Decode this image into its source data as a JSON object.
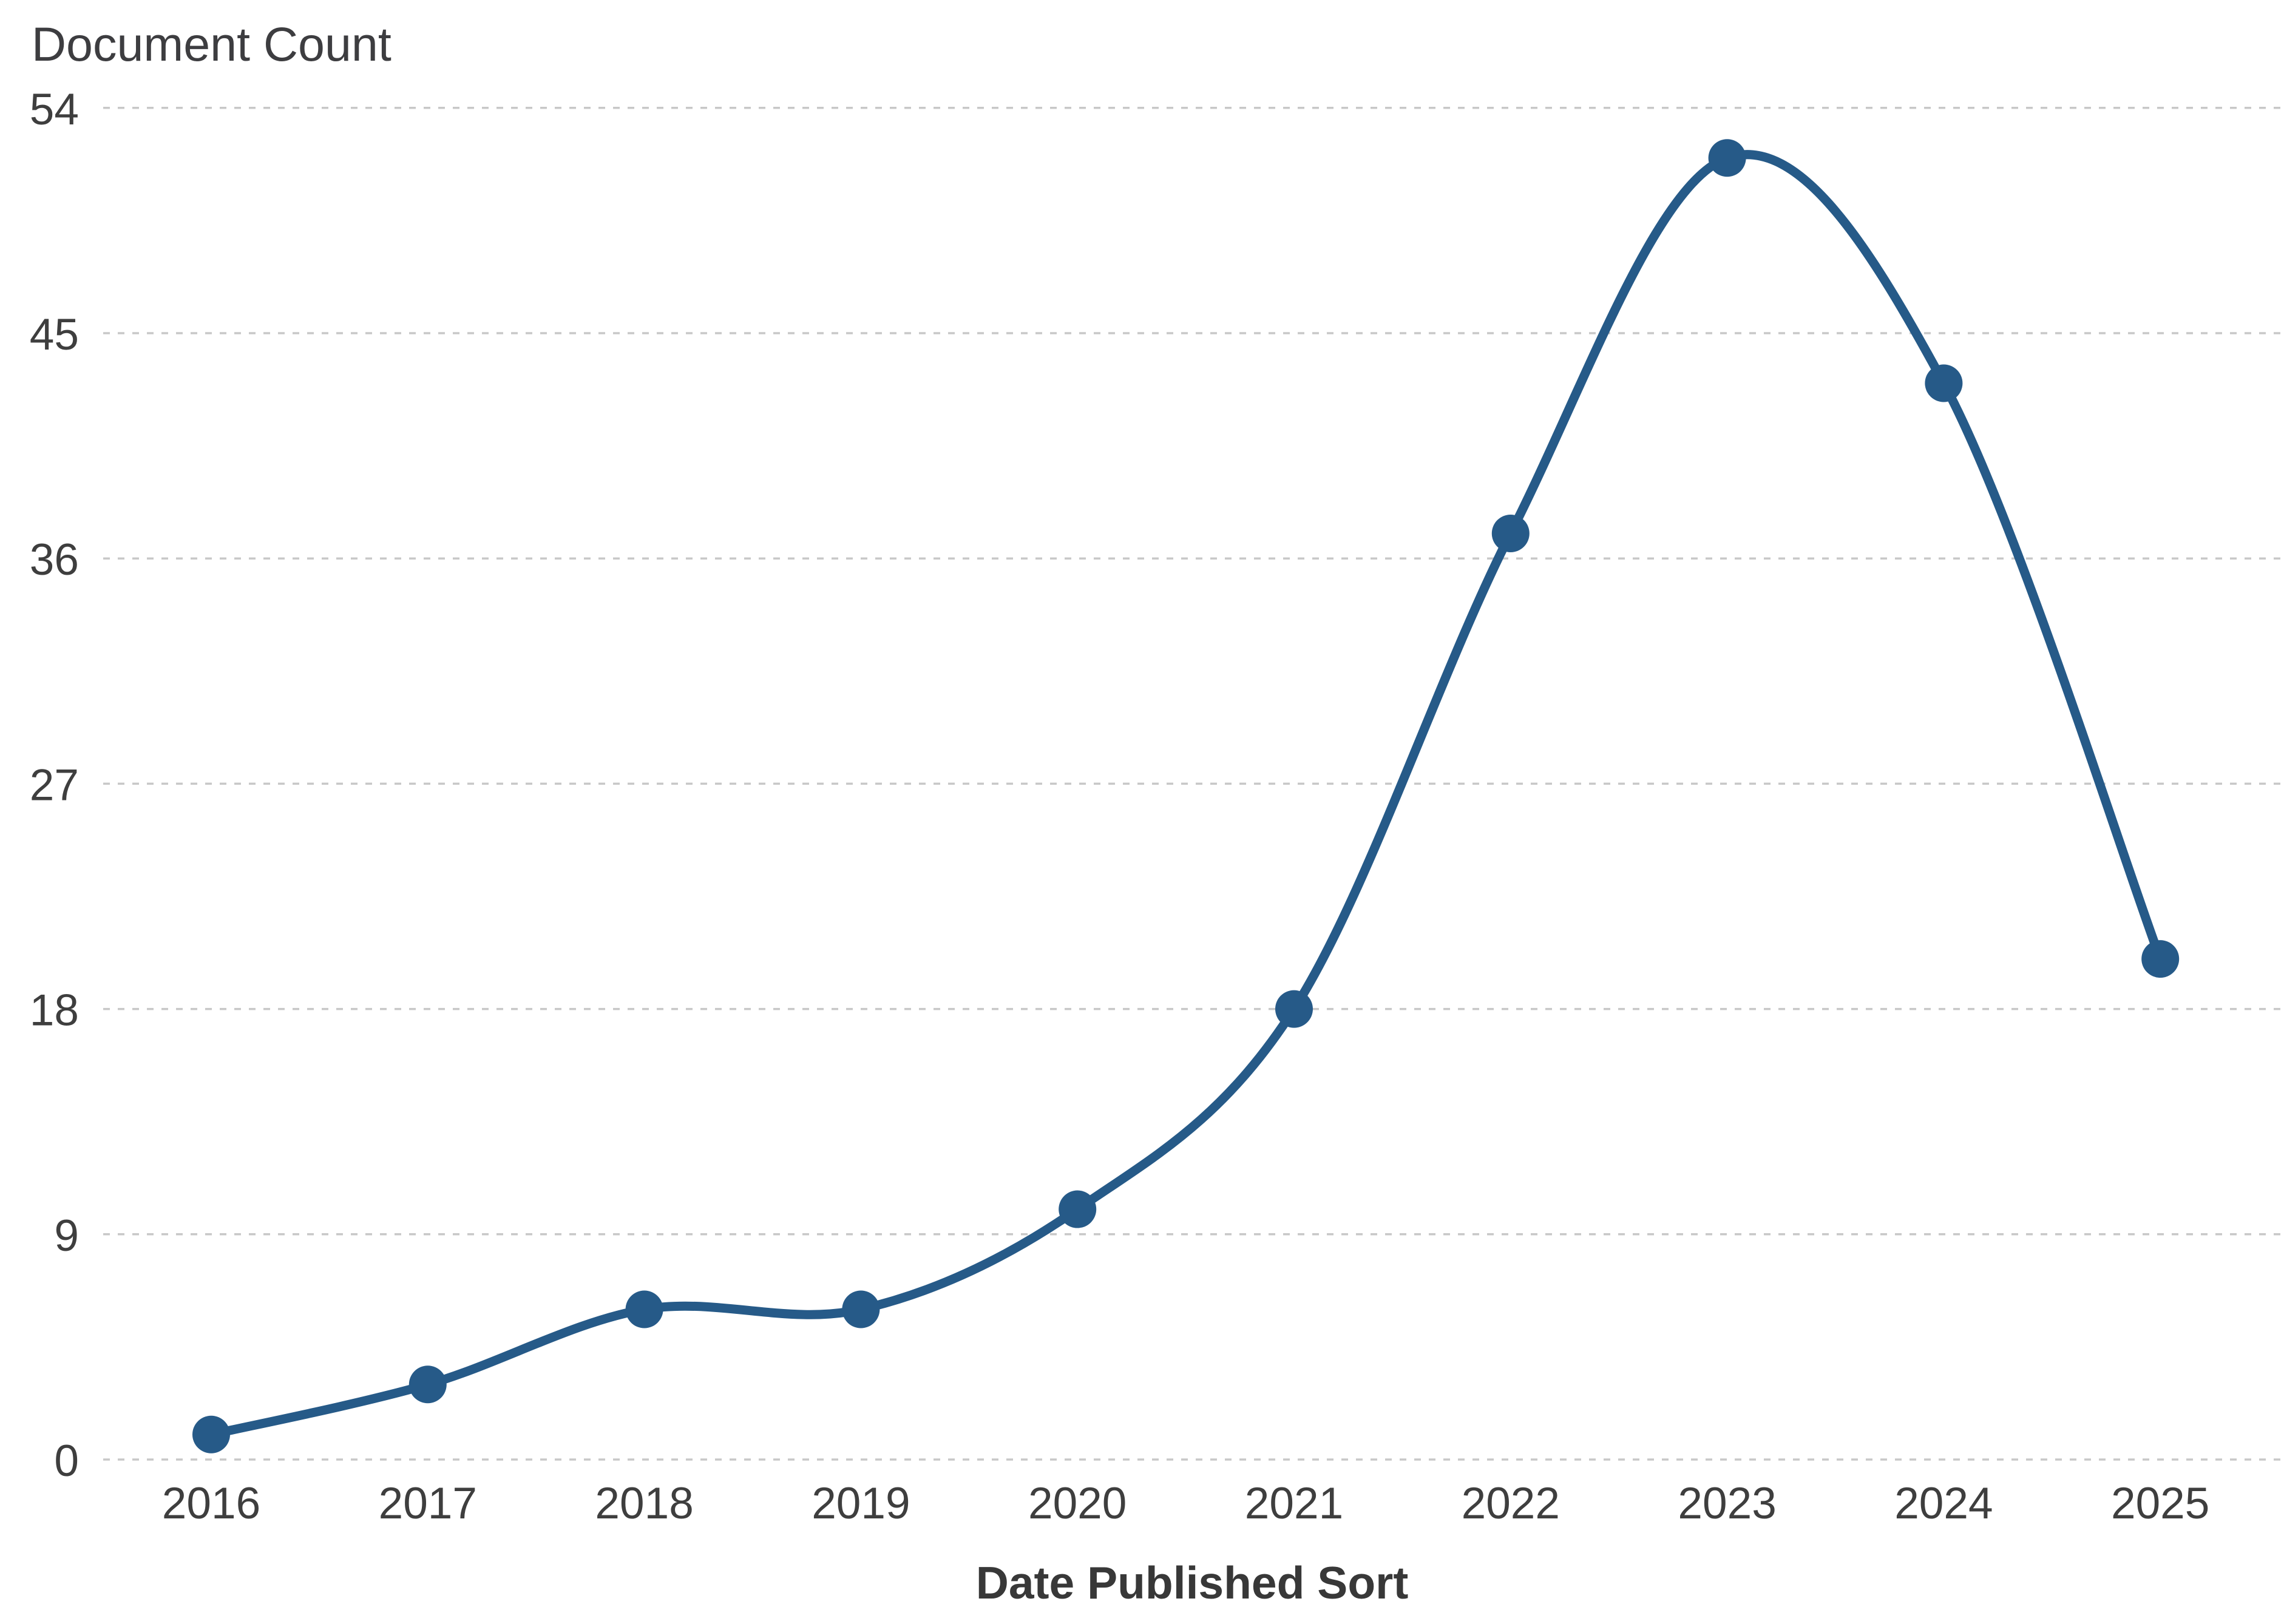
{
  "chart_data": {
    "type": "line",
    "title": "Document Count",
    "xlabel": "Date Published Sort",
    "ylabel": "Document Count",
    "categories": [
      "2016",
      "2017",
      "2018",
      "2019",
      "2020",
      "2021",
      "2022",
      "2023",
      "2024",
      "2025"
    ],
    "series": [
      {
        "name": "Document Count",
        "values": [
          1,
          3,
          6,
          6,
          10,
          18,
          37,
          52,
          43,
          20
        ]
      }
    ],
    "yticks": [
      54,
      45,
      36,
      27,
      18,
      9,
      0
    ],
    "ylim": [
      0,
      54
    ],
    "grid": "horizontal-dashed",
    "legend_position": "none",
    "marker": "circle",
    "colors": {
      "line": "#265a88",
      "marker": "#265a88",
      "gridline": "#c8c8c8",
      "tick_text": "#3e3e3e",
      "title_text": "#3d3d40",
      "background": "#ffffff"
    }
  }
}
